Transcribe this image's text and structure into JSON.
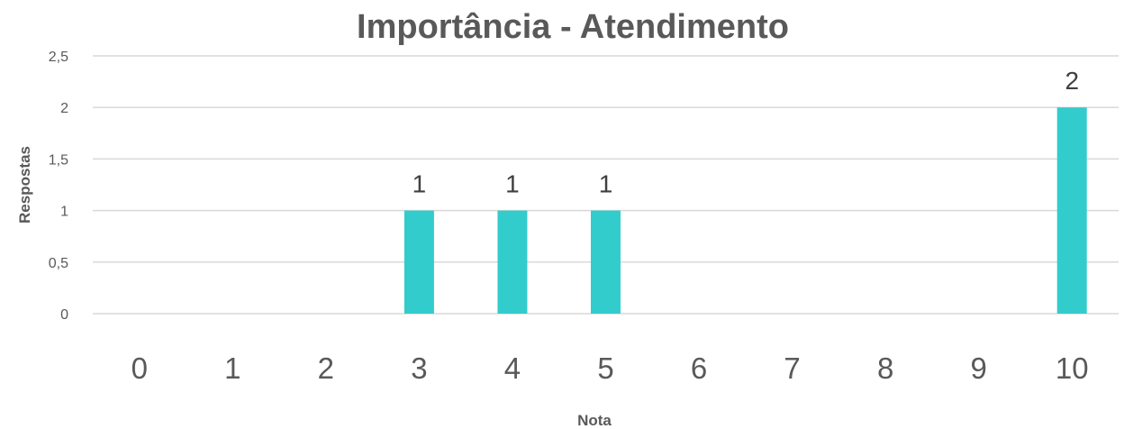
{
  "chart_data": {
    "type": "bar",
    "title": "Importância - Atendimento",
    "xlabel": "Nota",
    "ylabel": "Respostas",
    "categories": [
      "0",
      "1",
      "2",
      "3",
      "4",
      "5",
      "6",
      "7",
      "8",
      "9",
      "10"
    ],
    "values": [
      0,
      0,
      0,
      1,
      1,
      1,
      0,
      0,
      0,
      0,
      2
    ],
    "data_labels": [
      "",
      "",
      "",
      "1",
      "1",
      "1",
      "",
      "",
      "",
      "",
      "2"
    ],
    "ylim": [
      0,
      2.5
    ],
    "yticks": [
      "0",
      "0,5",
      "1",
      "1,5",
      "2",
      "2,5"
    ],
    "ytick_values": [
      0,
      0.5,
      1,
      1.5,
      2,
      2.5
    ],
    "grid": true,
    "legend": "none",
    "bar_color": "#33CCCC"
  }
}
